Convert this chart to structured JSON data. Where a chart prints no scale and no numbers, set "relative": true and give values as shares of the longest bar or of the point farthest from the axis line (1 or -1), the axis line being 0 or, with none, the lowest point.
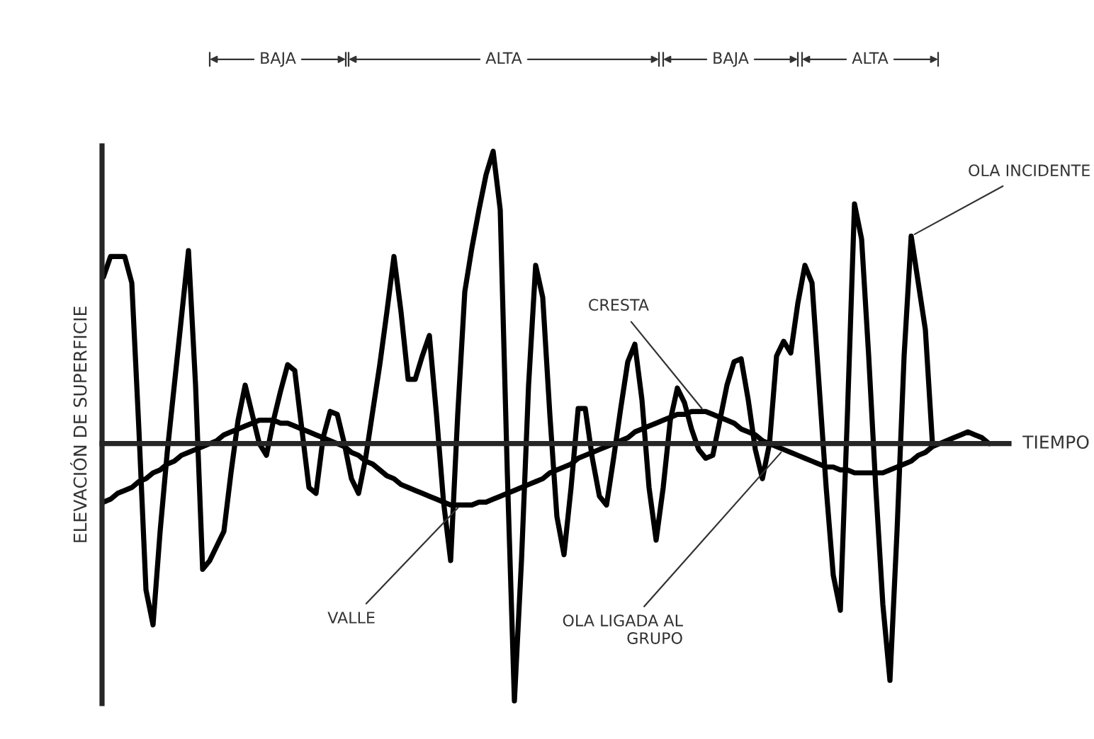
{
  "chart_data": {
    "type": "line",
    "relative": true,
    "xlabel": "TIEMPO",
    "ylabel": "ELEVACIÓN DE SUPERFICIE",
    "line_style": "solid",
    "marker": "none",
    "categories": [
      null,
      null,
      null,
      null,
      null,
      null,
      null,
      null,
      null,
      null,
      null,
      null,
      null,
      null,
      null,
      null,
      null,
      null,
      null,
      null,
      null,
      null,
      null,
      null,
      null,
      null,
      null,
      null,
      null,
      null,
      null,
      null,
      null,
      null,
      null,
      null,
      null,
      null,
      null,
      null,
      null,
      null,
      null,
      null,
      null,
      null,
      null,
      null,
      null,
      null,
      null,
      null,
      null,
      null,
      null,
      null,
      null,
      null,
      null,
      null,
      null,
      null,
      null,
      null,
      null,
      null,
      null,
      null,
      null,
      null,
      null,
      null,
      null,
      null,
      null,
      null,
      null,
      null,
      null,
      null,
      null,
      null,
      null,
      null,
      null,
      null,
      null,
      null,
      null,
      null,
      null,
      null,
      null,
      null,
      null,
      null,
      null,
      null,
      null,
      null,
      null,
      null,
      null,
      null,
      null,
      null,
      null,
      null,
      null,
      null,
      null,
      null,
      null,
      null,
      null,
      null,
      null,
      null,
      null,
      null,
      null,
      null,
      null,
      null,
      null,
      null
    ],
    "series": [
      {
        "color": "#000000",
        "values": [
          0.57,
          0.64,
          0.64,
          0.64,
          0.55,
          0.05,
          -0.5,
          -0.62,
          -0.3,
          -0.03,
          0.2,
          0.43,
          0.66,
          0.2,
          -0.43,
          -0.4,
          -0.35,
          -0.3,
          -0.1,
          0.08,
          0.2,
          0.1,
          0.0,
          -0.04,
          0.08,
          0.18,
          0.27,
          0.25,
          0.05,
          -0.15,
          -0.17,
          0.02,
          0.11,
          0.1,
          0.0,
          -0.12,
          -0.17,
          -0.05,
          0.11,
          0.27,
          0.45,
          0.64,
          0.45,
          0.22,
          0.22,
          0.3,
          0.37,
          0.1,
          -0.2,
          -0.4,
          0.1,
          0.52,
          0.67,
          0.8,
          0.92,
          1.0,
          0.8,
          -0.1,
          -0.88,
          -0.4,
          0.2,
          0.61,
          0.5,
          0.1,
          -0.25,
          -0.38,
          -0.15,
          0.12,
          0.12,
          -0.05,
          -0.18,
          -0.21,
          -0.05,
          0.12,
          0.28,
          0.34,
          0.15,
          -0.15,
          -0.33,
          -0.15,
          0.08,
          0.19,
          0.14,
          0.05,
          -0.02,
          -0.05,
          -0.04,
          0.08,
          0.2,
          0.28,
          0.29,
          0.15,
          -0.02,
          -0.12,
          0.0,
          0.3,
          0.35,
          0.31,
          0.48,
          0.61,
          0.55,
          0.2,
          -0.15,
          -0.45,
          -0.57,
          0.1,
          0.82,
          0.7,
          0.3,
          -0.15,
          -0.55,
          -0.81,
          -0.3,
          0.3,
          0.71,
          0.55,
          0.39,
          0.0,
          null,
          null,
          null,
          null,
          null,
          null,
          null,
          null
        ]
      },
      {
        "color": "#000000",
        "values": [
          -0.2,
          -0.19,
          -0.17,
          -0.16,
          -0.15,
          -0.13,
          -0.12,
          -0.1,
          -0.09,
          -0.07,
          -0.06,
          -0.04,
          -0.03,
          -0.02,
          -0.01,
          0.0,
          0.01,
          0.03,
          0.04,
          0.05,
          0.06,
          0.07,
          0.08,
          0.08,
          0.08,
          0.07,
          0.07,
          0.06,
          0.05,
          0.04,
          0.03,
          0.02,
          0.01,
          0.0,
          -0.01,
          -0.03,
          -0.04,
          -0.06,
          -0.07,
          -0.09,
          -0.11,
          -0.12,
          -0.14,
          -0.15,
          -0.16,
          -0.17,
          -0.18,
          -0.19,
          -0.2,
          -0.21,
          -0.21,
          -0.21,
          -0.21,
          -0.2,
          -0.2,
          -0.19,
          -0.18,
          -0.17,
          -0.16,
          -0.15,
          -0.14,
          -0.13,
          -0.12,
          -0.1,
          -0.09,
          -0.08,
          -0.07,
          -0.05,
          -0.04,
          -0.03,
          -0.02,
          -0.01,
          0.0,
          0.01,
          0.02,
          0.04,
          0.05,
          0.06,
          0.07,
          0.08,
          0.09,
          0.1,
          0.1,
          0.11,
          0.11,
          0.11,
          0.1,
          0.09,
          0.08,
          0.07,
          0.05,
          0.04,
          0.03,
          0.01,
          0.0,
          -0.01,
          -0.02,
          -0.03,
          -0.04,
          -0.05,
          -0.06,
          -0.07,
          -0.08,
          -0.08,
          -0.09,
          -0.09,
          -0.1,
          -0.1,
          -0.1,
          -0.1,
          -0.1,
          -0.09,
          -0.08,
          -0.07,
          -0.06,
          -0.04,
          -0.03,
          -0.01,
          0.0,
          0.01,
          0.02,
          0.03,
          0.04,
          0.03,
          0.02,
          0.0
        ]
      }
    ],
    "annotations": [
      "BAJA",
      "ALTA",
      "BAJA",
      "ALTA",
      "OLA INCIDENTE",
      "CRESTA",
      "VALLE",
      "OLA LIGADA AL\nGRUPO"
    ]
  }
}
